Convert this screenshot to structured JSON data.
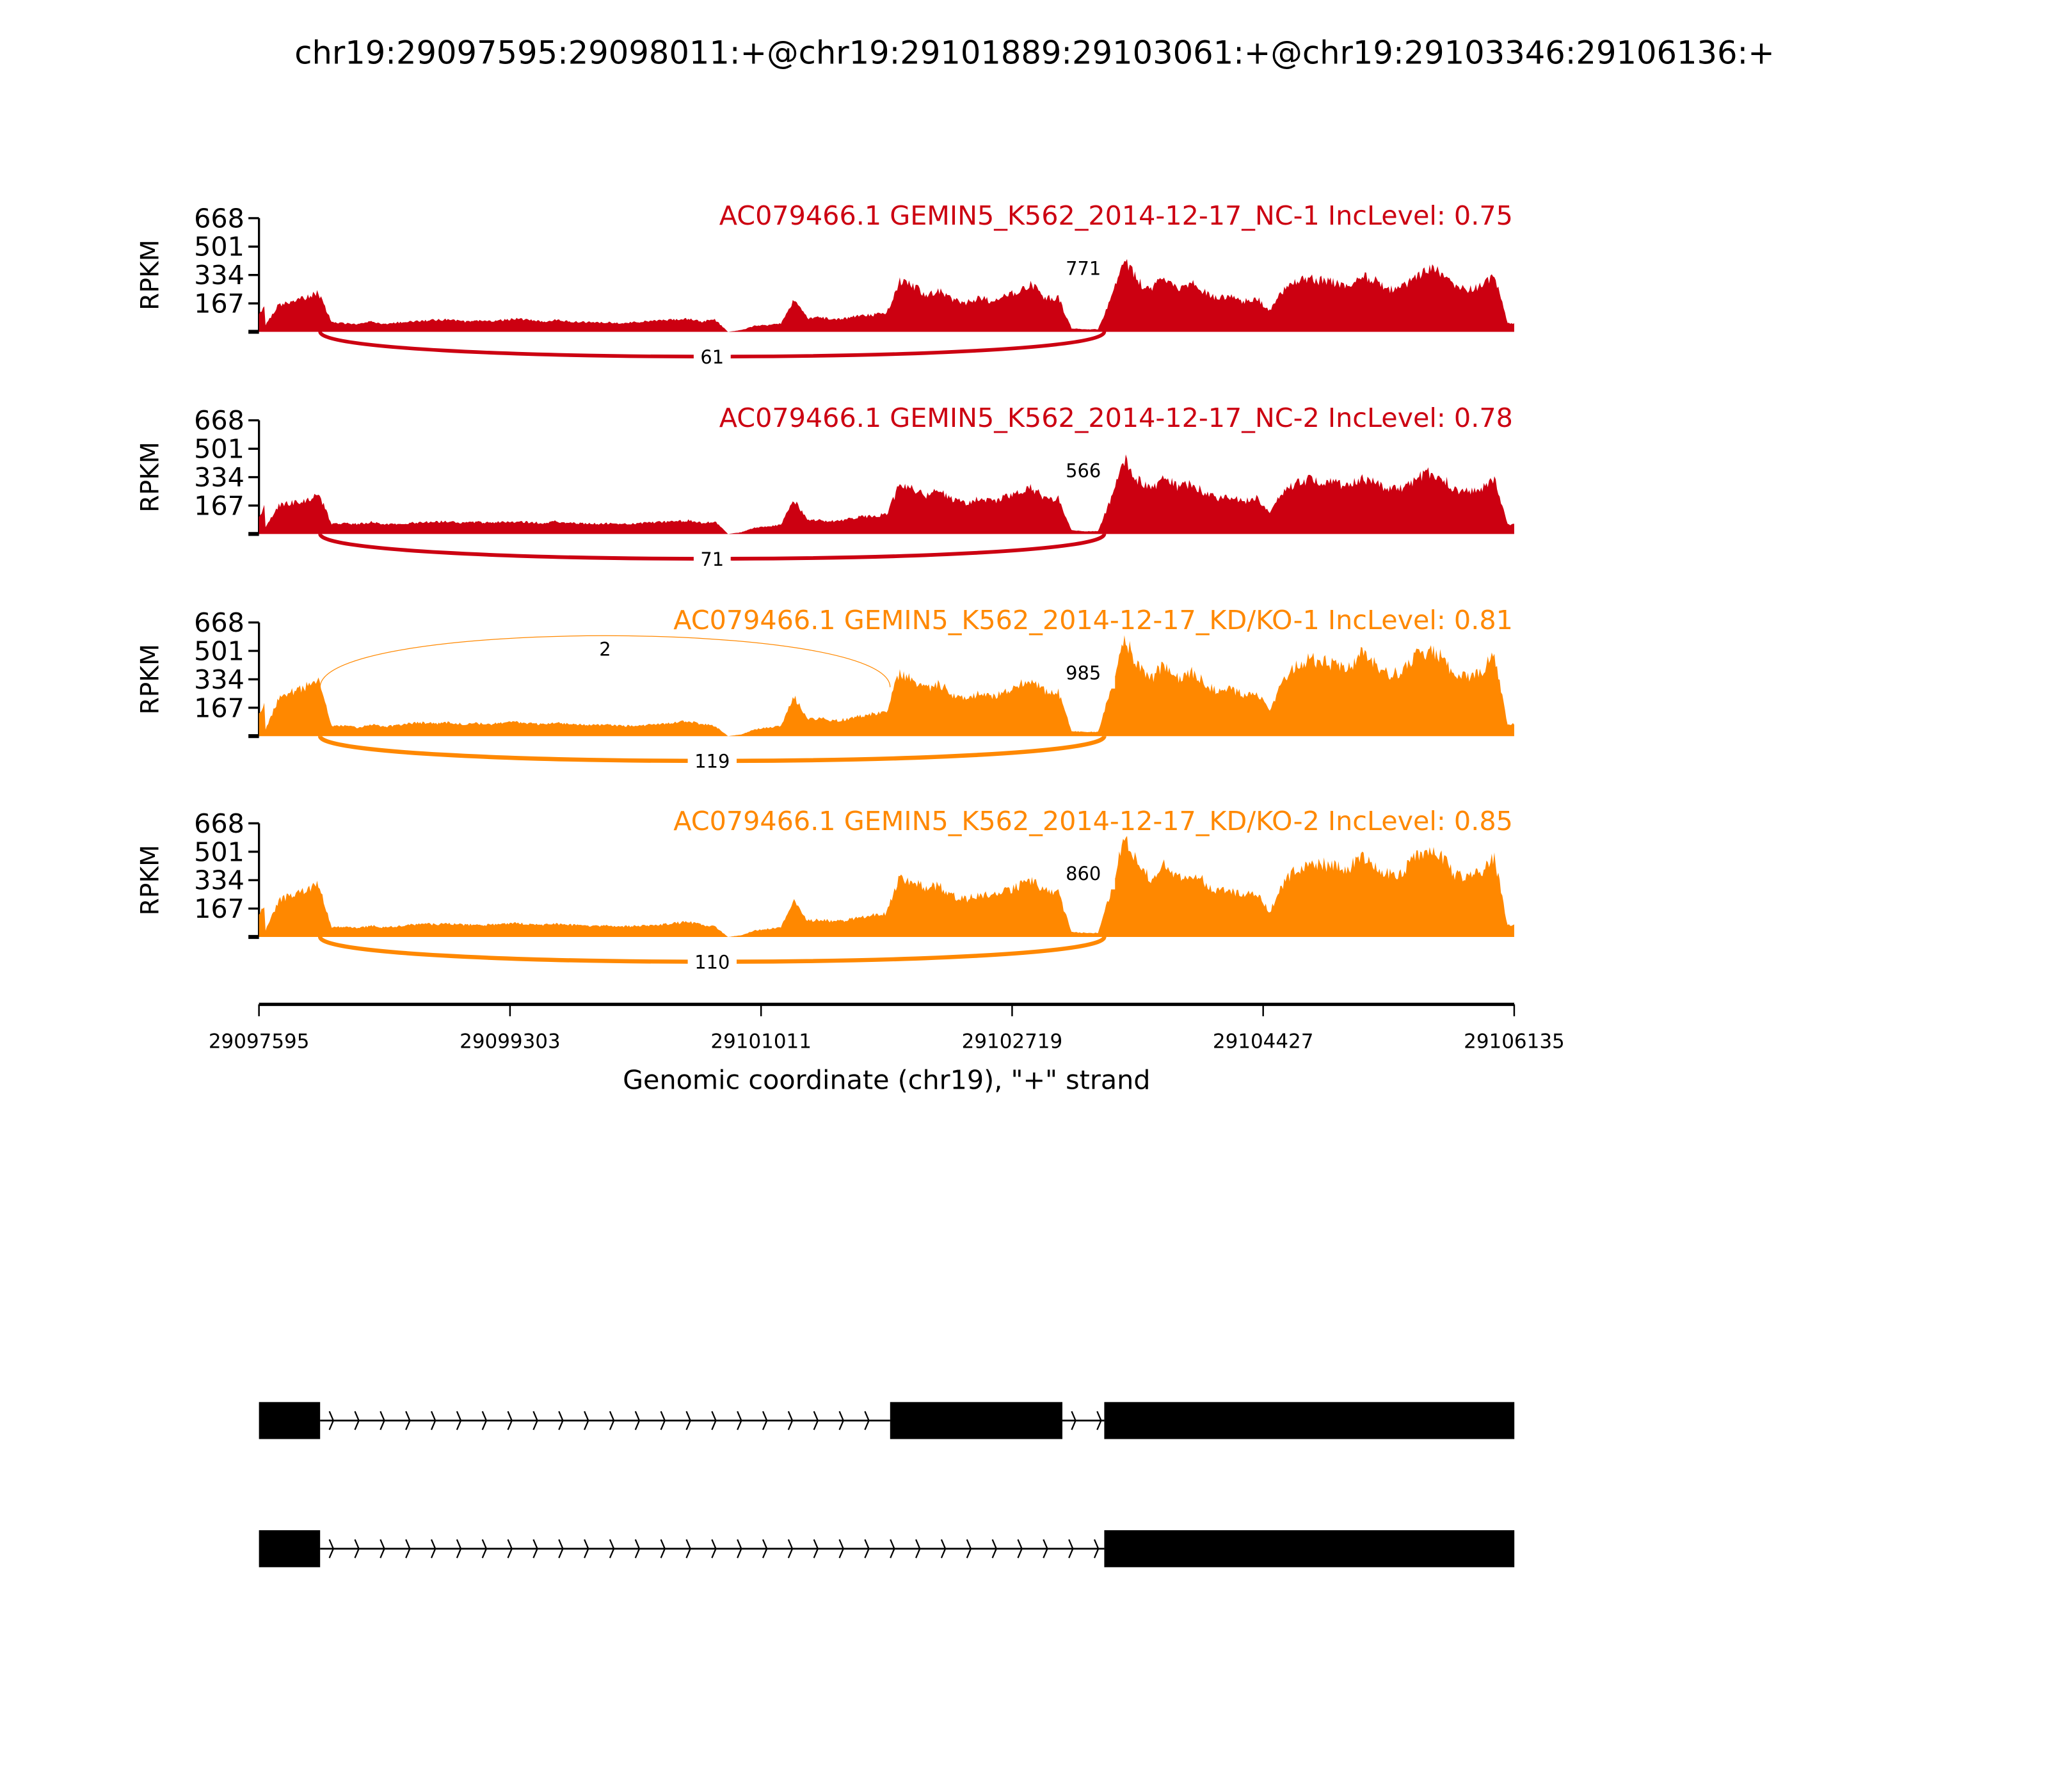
{
  "chart_data": {
    "type": "area",
    "title": "chr19:29097595:29098011:+@chr19:29101889:29103061:+@chr19:29103346:29106136:+",
    "xlabel": "Genomic coordinate (chr19), \"+\" strand",
    "ylabel": "RPKM",
    "xlim": [
      29097595,
      29106135
    ],
    "x_ticks": [
      "29097595",
      "29099303",
      "29101011",
      "29102719",
      "29104427",
      "29106135"
    ],
    "y_ticks": [
      "668",
      "501",
      "334",
      "167"
    ],
    "ylim": [
      0,
      668
    ],
    "grid": false,
    "coverage_bin_bp": 89.9,
    "colors": {
      "NC": "#cc0011",
      "KD": "#ff8800"
    },
    "exons": [
      [
        29097595,
        29098011
      ],
      [
        29101889,
        29103061
      ],
      [
        29103346,
        29106136
      ]
    ],
    "series": [
      {
        "name": "AC079466.1 GEMIN5_K562_2014-12-17_NC-1 IncLevel: 0.75",
        "group": "NC",
        "coverage": [
          40,
          160,
          175,
          200,
          235,
          55,
          50,
          45,
          60,
          45,
          55,
          60,
          65,
          70,
          72,
          60,
          65,
          62,
          70,
          78,
          68,
          60,
          72,
          60,
          58,
          55,
          55,
          50,
          58,
          62,
          66,
          70,
          78,
          60,
          72,
          0,
          10,
          35,
          40,
          50,
          190,
          80,
          85,
          70,
          80,
          95,
          100,
          110,
          300,
          270,
          220,
          240,
          190,
          170,
          200,
          180,
          210,
          240,
          280,
          200,
          200,
          20,
          15,
          15,
          200,
          420,
          300,
          240,
          330,
          260,
          290,
          240,
          200,
          210,
          180,
          200,
          120,
          240,
          300,
          310,
          300,
          290,
          270,
          340,
          300,
          250,
          260,
          330,
          370,
          350,
          260,
          250,
          270,
          330,
          50
        ],
        "junctions": [
          {
            "from": 29098011,
            "to": 29103346,
            "count": "61",
            "side": "below"
          },
          {
            "from": 29103061,
            "to": 29103346,
            "count": "771",
            "side": "above"
          }
        ]
      },
      {
        "name": "AC079466.1 GEMIN5_K562_2014-12-17_NC-2 IncLevel: 0.78",
        "group": "NC",
        "coverage": [
          40,
          170,
          185,
          190,
          240,
          60,
          62,
          58,
          70,
          55,
          60,
          65,
          70,
          72,
          74,
          66,
          70,
          68,
          72,
          70,
          70,
          64,
          74,
          66,
          62,
          60,
          62,
          58,
          62,
          68,
          70,
          72,
          80,
          64,
          74,
          0,
          10,
          38,
          44,
          55,
          200,
          85,
          80,
          75,
          85,
          100,
          105,
          115,
          290,
          260,
          230,
          250,
          200,
          180,
          210,
          190,
          220,
          250,
          270,
          210,
          210,
          22,
          16,
          16,
          210,
          440,
          320,
          260,
          330,
          280,
          290,
          250,
          210,
          220,
          190,
          210,
          120,
          250,
          300,
          320,
          310,
          300,
          280,
          330,
          300,
          260,
          270,
          320,
          360,
          340,
          260,
          250,
          270,
          320,
          55
        ],
        "junctions": [
          {
            "from": 29098011,
            "to": 29103346,
            "count": "71",
            "side": "below"
          },
          {
            "from": 29103061,
            "to": 29103346,
            "count": "566",
            "side": "above"
          }
        ]
      },
      {
        "name": "AC079466.1 GEMIN5_K562_2014-12-17_KD/KO-1 IncLevel: 0.81",
        "group": "KD",
        "coverage": [
          40,
          220,
          260,
          290,
          320,
          60,
          60,
          50,
          70,
          55,
          65,
          75,
          80,
          75,
          80,
          70,
          75,
          70,
          80,
          85,
          75,
          70,
          80,
          70,
          68,
          65,
          65,
          60,
          62,
          66,
          70,
          80,
          90,
          70,
          60,
          0,
          10,
          40,
          50,
          60,
          230,
          100,
          105,
          90,
          100,
          120,
          130,
          140,
          380,
          330,
          280,
          310,
          240,
          210,
          250,
          230,
          260,
          300,
          340,
          270,
          260,
          30,
          25,
          25,
          280,
          580,
          420,
          330,
          430,
          340,
          380,
          320,
          260,
          280,
          240,
          260,
          150,
          320,
          420,
          450,
          440,
          420,
          400,
          500,
          420,
          360,
          380,
          470,
          500,
          470,
          360,
          340,
          380,
          480,
          70
        ],
        "junctions": [
          {
            "from": 29098011,
            "to": 29101889,
            "count": "2",
            "side": "above"
          },
          {
            "from": 29098011,
            "to": 29103346,
            "count": "119",
            "side": "below"
          },
          {
            "from": 29103061,
            "to": 29103346,
            "count": "985",
            "side": "above"
          }
        ]
      },
      {
        "name": "AC079466.1 GEMIN5_K562_2014-12-17_KD/KO-2 IncLevel: 0.85",
        "group": "KD",
        "coverage": [
          40,
          210,
          250,
          270,
          310,
          60,
          58,
          52,
          66,
          56,
          62,
          72,
          78,
          74,
          78,
          72,
          74,
          70,
          78,
          82,
          74,
          70,
          78,
          72,
          66,
          64,
          66,
          62,
          64,
          68,
          72,
          82,
          88,
          72,
          62,
          0,
          10,
          38,
          48,
          58,
          220,
          98,
          100,
          92,
          98,
          118,
          128,
          138,
          360,
          320,
          290,
          300,
          240,
          220,
          250,
          240,
          270,
          300,
          330,
          270,
          260,
          28,
          24,
          24,
          270,
          600,
          430,
          340,
          420,
          350,
          370,
          330,
          270,
          280,
          240,
          260,
          150,
          310,
          400,
          430,
          430,
          410,
          400,
          490,
          420,
          370,
          380,
          460,
          490,
          470,
          370,
          350,
          380,
          470,
          70
        ],
        "junctions": [
          {
            "from": 29098011,
            "to": 29103346,
            "count": "110",
            "side": "below"
          },
          {
            "from": 29103061,
            "to": 29103346,
            "count": "860",
            "side": "above"
          }
        ]
      }
    ],
    "gene_models": [
      {
        "exons": [
          [
            29097595,
            29098011
          ],
          [
            29101889,
            29103061
          ],
          [
            29103346,
            29106136
          ]
        ]
      },
      {
        "exons": [
          [
            29097595,
            29098011
          ],
          [
            29103346,
            29106136
          ]
        ]
      }
    ]
  }
}
